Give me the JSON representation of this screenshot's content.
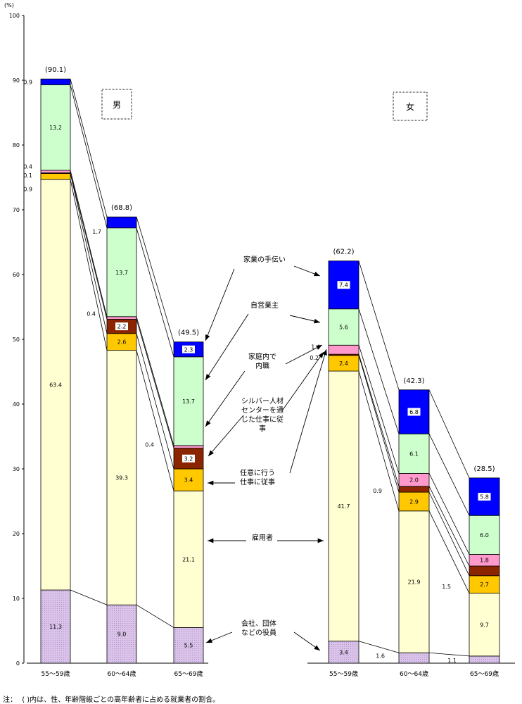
{
  "chart_data": {
    "type": "bar",
    "stacked": true,
    "unit_label": "(%)",
    "ylim": [
      0,
      100
    ],
    "yticks": [
      0,
      10,
      20,
      30,
      40,
      50,
      60,
      70,
      80,
      90,
      100
    ],
    "layer_order_bottom_to_top": [
      "役員",
      "雇用者",
      "任意",
      "シルバー",
      "内職",
      "自営業主",
      "家業"
    ],
    "colors": {
      "役員": "#d9c3e8",
      "雇用者": "#ffffd2",
      "任意": "#ffc800",
      "シルバー": "#8b2500",
      "内職": "#ff99cc",
      "自営業主": "#ccffcc",
      "家業": "#0000ff"
    },
    "groups": [
      {
        "name": "男",
        "categories": [
          "55～59歳",
          "60～64歳",
          "65～69歳"
        ],
        "totals": [
          "(90.1)",
          "(68.8)",
          "(49.5)"
        ],
        "values": [
          {
            "役員": 11.3,
            "雇用者": 63.4,
            "任意": 0.9,
            "シルバー": 0.1,
            "内職": 0.4,
            "自営業主": 13.2,
            "家業": 0.9
          },
          {
            "役員": 9.0,
            "雇用者": 39.3,
            "任意": 2.6,
            "シルバー": 2.2,
            "内職": 0.4,
            "自営業主": 13.7,
            "家業": 1.7
          },
          {
            "役員": 5.5,
            "雇用者": 21.1,
            "任意": 3.4,
            "シルバー": 3.2,
            "内職": 0.4,
            "自営業主": 13.7,
            "家業": 2.3
          }
        ],
        "labels": [
          {
            "役員": "11.3",
            "雇用者": "63.4",
            "任意": "0.9",
            "シルバー": "0.1",
            "内職": "0.4",
            "自営業主": "13.2",
            "家業": "0.9"
          },
          {
            "役員": "9.0",
            "雇用者": "39.3",
            "任意": "2.6",
            "シルバー": "2.2",
            "内職": "0.4",
            "自営業主": "13.7",
            "家業": "1.7"
          },
          {
            "役員": "5.5",
            "雇用者": "21.1",
            "任意": "3.4",
            "シルバー": "3.2",
            "内職": "0.4",
            "自営業主": "13.7",
            "家業": "2.3"
          }
        ]
      },
      {
        "name": "女",
        "categories": [
          "55～59歳",
          "60～64歳",
          "65～69歳"
        ],
        "totals": [
          "(62.2)",
          "(42.3)",
          "(28.5)"
        ],
        "values": [
          {
            "役員": 3.4,
            "雇用者": 41.7,
            "任意": 2.4,
            "シルバー": 0.2,
            "内職": 1.4,
            "自営業主": 5.6,
            "家業": 7.4
          },
          {
            "役員": 1.6,
            "雇用者": 21.9,
            "任意": 2.9,
            "シルバー": 0.9,
            "内職": 2.0,
            "自営業主": 6.1,
            "家業": 6.8
          },
          {
            "役員": 1.1,
            "雇用者": 9.7,
            "任意": 2.7,
            "シルバー": 1.5,
            "内職": 1.8,
            "自営業主": 6.0,
            "家業": 5.8
          }
        ],
        "labels": [
          {
            "役員": "3.4",
            "雇用者": "41.7",
            "任意": "2.4",
            "シルバー": "0.2",
            "内職": "1.4",
            "自営業主": "5.6",
            "家業": "7.4"
          },
          {
            "役員": "1.6",
            "雇用者": "21.9",
            "任意": "2.9",
            "シルバー": "0.9",
            "内職": "2.0",
            "自営業主": "6.1",
            "家業": "6.8"
          },
          {
            "役員": "1.1",
            "雇用者": "9.7",
            "任意": "2.7",
            "シルバー": "1.5",
            "内職": "1.8",
            "自営業主": "6.0",
            "家業": "5.8"
          }
        ]
      }
    ],
    "legend_annotations": [
      {
        "key": "家業",
        "text": [
          "家業の手伝い"
        ]
      },
      {
        "key": "自営業主",
        "text": [
          "自営業主"
        ]
      },
      {
        "key": "内職",
        "text": [
          "家庭内で",
          "内職"
        ]
      },
      {
        "key": "シルバー",
        "text": [
          "シルバー人材",
          "センターを通",
          "じた仕事に従",
          "事"
        ]
      },
      {
        "key": "任意",
        "text": [
          "任意に行う",
          "仕事に従事"
        ]
      },
      {
        "key": "雇用者",
        "text": [
          "雇用者"
        ]
      },
      {
        "key": "役員",
        "text": [
          "会社、団体",
          "などの役員"
        ]
      }
    ]
  },
  "note": {
    "prefix": "注：",
    "text": "(  )内は、性、年齢階級ごとの高年齢者に占める就業者の割合。"
  }
}
